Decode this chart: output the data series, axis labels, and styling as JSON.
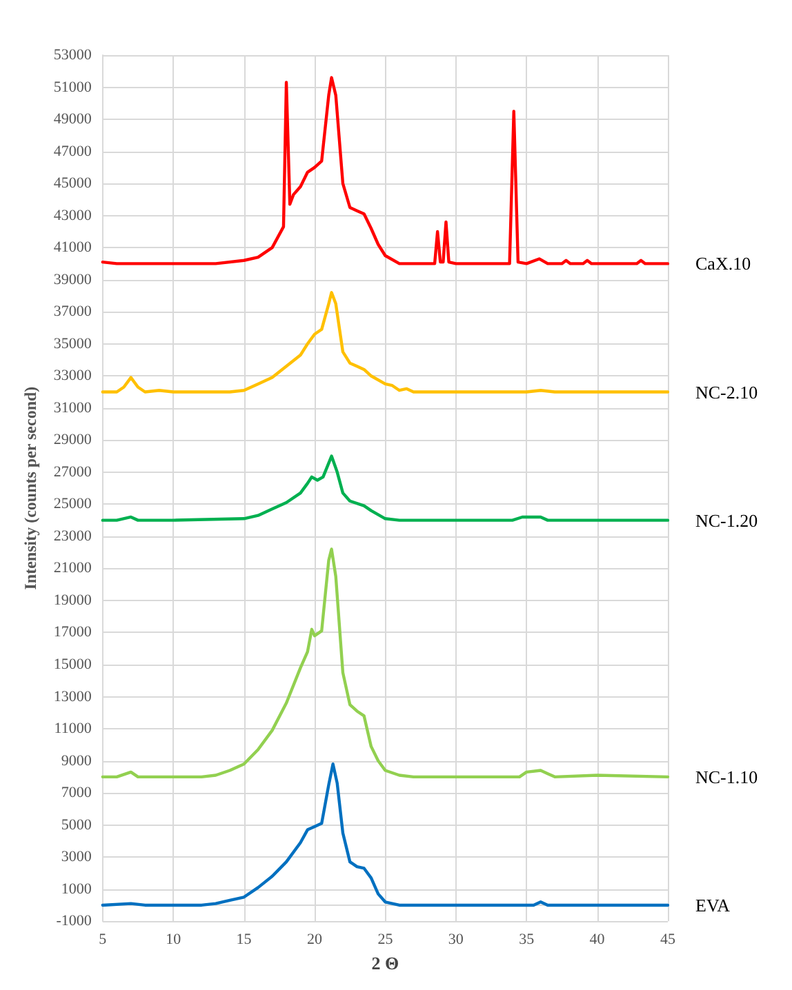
{
  "chart_data": {
    "type": "line",
    "xlabel": "2 Θ",
    "ylabel": "Intensity (counts per second)",
    "xlim": [
      5,
      45
    ],
    "xticks": [
      5,
      10,
      15,
      20,
      25,
      30,
      35,
      40,
      45
    ],
    "ylim": [
      -1000,
      53000
    ],
    "yticks": [
      -1000,
      1000,
      3000,
      5000,
      7000,
      9000,
      11000,
      13000,
      15000,
      17000,
      19000,
      21000,
      23000,
      25000,
      27000,
      29000,
      31000,
      33000,
      35000,
      37000,
      39000,
      41000,
      43000,
      45000,
      47000,
      49000,
      51000,
      53000
    ],
    "grid": true,
    "marker": "none",
    "line_style": "solid",
    "series": [
      {
        "name": "CaX.10",
        "color": "#ff0000",
        "x": [
          5,
          6,
          8,
          10,
          13,
          15,
          16,
          17,
          17.8,
          18,
          18.25,
          18.5,
          19,
          19.5,
          20,
          20.5,
          21,
          21.2,
          21.5,
          22,
          22.5,
          23,
          23.5,
          24,
          24.5,
          25,
          26,
          28,
          28.5,
          28.7,
          28.9,
          29.1,
          29.3,
          29.5,
          30,
          33.8,
          34.1,
          34.4,
          35,
          35.9,
          36.5,
          37.5,
          37.8,
          38.1,
          39,
          39.3,
          39.6,
          42.8,
          43.1,
          43.4,
          45
        ],
        "values": [
          40100,
          40000,
          40000,
          40000,
          40000,
          40200,
          40400,
          41000,
          42300,
          51300,
          43700,
          44300,
          44800,
          45700,
          46000,
          46400,
          50500,
          51600,
          50500,
          45000,
          43500,
          43300,
          43100,
          42200,
          41200,
          40500,
          40000,
          40000,
          40000,
          42000,
          40100,
          40100,
          42600,
          40100,
          40000,
          40000,
          49500,
          40100,
          40000,
          40300,
          40000,
          40000,
          40200,
          40000,
          40000,
          40200,
          40000,
          40000,
          40200,
          40000,
          40000
        ]
      },
      {
        "name": "NC-2.10",
        "color": "#ffc000",
        "x": [
          5,
          6,
          6.5,
          7,
          7.5,
          8,
          9,
          10,
          14,
          15,
          16,
          17,
          18,
          19,
          19.5,
          20,
          20.5,
          21,
          21.2,
          21.5,
          22,
          22.5,
          23,
          23.5,
          24,
          25,
          25.5,
          26,
          26.5,
          27,
          30,
          35,
          36,
          37,
          45
        ],
        "values": [
          32000,
          32000,
          32300,
          32900,
          32300,
          32000,
          32100,
          32000,
          32000,
          32100,
          32500,
          32900,
          33600,
          34300,
          35000,
          35600,
          35900,
          37500,
          38200,
          37500,
          34500,
          33800,
          33600,
          33400,
          33000,
          32500,
          32400,
          32100,
          32200,
          32000,
          32000,
          32000,
          32100,
          32000,
          32000
        ]
      },
      {
        "name": "NC-1.20",
        "color": "#00b050",
        "x": [
          5,
          6,
          7,
          7.5,
          10,
          15,
          16,
          17,
          18,
          19,
          19.5,
          19.8,
          20.2,
          20.6,
          21.2,
          21.6,
          22,
          22.5,
          23.5,
          24,
          25,
          26,
          34,
          34.7,
          36,
          36.5,
          45
        ],
        "values": [
          24000,
          24000,
          24200,
          24000,
          24000,
          24100,
          24300,
          24700,
          25100,
          25700,
          26300,
          26700,
          26500,
          26700,
          28000,
          27000,
          25700,
          25200,
          24900,
          24600,
          24100,
          24000,
          24000,
          24200,
          24200,
          24000,
          24000
        ]
      },
      {
        "name": "NC-1.10",
        "color": "#92d050",
        "x": [
          5,
          6,
          7,
          7.5,
          10,
          12,
          13,
          14,
          15,
          16,
          17,
          18,
          19,
          19.5,
          19.8,
          20,
          20.5,
          21,
          21.2,
          21.5,
          22,
          22.5,
          23,
          23.5,
          24,
          24.5,
          25,
          26,
          27,
          34.5,
          35,
          36,
          36.5,
          37,
          40,
          45
        ],
        "values": [
          8000,
          8000,
          8300,
          8000,
          8000,
          8000,
          8100,
          8400,
          8800,
          9700,
          10900,
          12600,
          14800,
          15800,
          17200,
          16800,
          17100,
          21500,
          22200,
          20500,
          14500,
          12500,
          12100,
          11800,
          9900,
          9000,
          8400,
          8100,
          8000,
          8000,
          8300,
          8400,
          8200,
          8000,
          8100,
          8000
        ]
      },
      {
        "name": "EVA",
        "color": "#0070c0",
        "x": [
          5,
          7,
          8,
          12,
          13,
          14,
          15,
          16,
          17,
          18,
          19,
          19.5,
          20,
          20.5,
          21,
          21.3,
          21.6,
          22,
          22.5,
          23,
          23.5,
          24,
          24.5,
          25,
          26,
          27,
          35.5,
          36,
          36.5,
          45
        ],
        "values": [
          0,
          100,
          0,
          0,
          100,
          300,
          500,
          1100,
          1800,
          2700,
          3900,
          4700,
          4900,
          5100,
          7500,
          8800,
          7600,
          4500,
          2700,
          2400,
          2300,
          1700,
          700,
          200,
          0,
          0,
          0,
          200,
          0,
          0
        ]
      }
    ]
  }
}
